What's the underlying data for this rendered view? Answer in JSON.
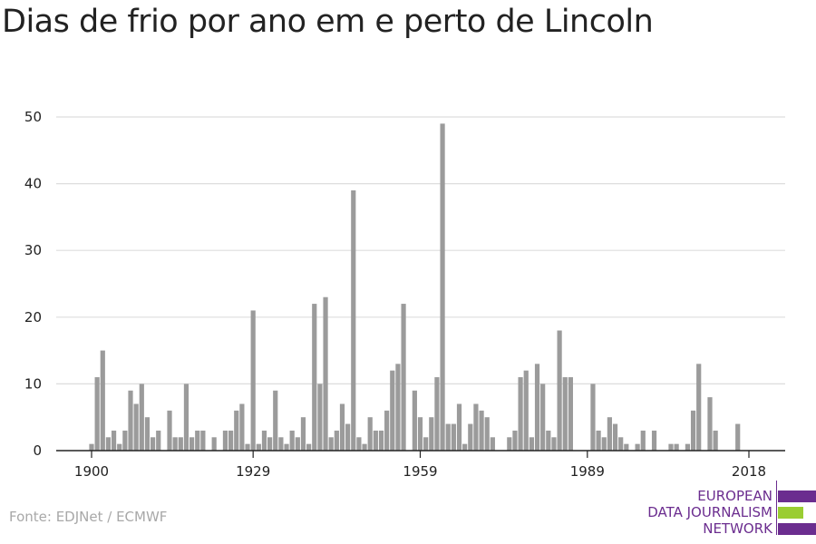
{
  "title": "Dias de frio por ano em e perto de Lincoln",
  "source": "Fonte: EDJNet / ECMWF",
  "logo": {
    "lines": [
      "EUROPEAN",
      "DATA JOURNALISM",
      "NETWORK"
    ],
    "colors": {
      "purple": "#6b2d8f",
      "green": "#9acd32"
    }
  },
  "colors": {
    "bar": "#9b9b9b",
    "grid": "#dddddd",
    "axis": "#222222"
  },
  "chart_data": {
    "type": "bar",
    "title": "Dias de frio por ano em e perto de Lincoln",
    "xlabel": "",
    "ylabel": "",
    "ylim": [
      0,
      50
    ],
    "y_ticks": [
      0,
      10,
      20,
      30,
      40,
      50
    ],
    "x_ticks": [
      1900,
      1929,
      1959,
      1989,
      2018
    ],
    "x_range": [
      1900,
      2018
    ],
    "grid": true,
    "x": [
      1900,
      1901,
      1902,
      1903,
      1904,
      1905,
      1906,
      1907,
      1908,
      1909,
      1910,
      1911,
      1912,
      1913,
      1914,
      1915,
      1916,
      1917,
      1918,
      1919,
      1920,
      1921,
      1922,
      1923,
      1924,
      1925,
      1926,
      1927,
      1928,
      1929,
      1930,
      1931,
      1932,
      1933,
      1934,
      1935,
      1936,
      1937,
      1938,
      1939,
      1940,
      1941,
      1942,
      1943,
      1944,
      1945,
      1946,
      1947,
      1948,
      1949,
      1950,
      1951,
      1952,
      1953,
      1954,
      1955,
      1956,
      1957,
      1958,
      1959,
      1960,
      1961,
      1962,
      1963,
      1964,
      1965,
      1966,
      1967,
      1968,
      1969,
      1970,
      1971,
      1972,
      1973,
      1974,
      1975,
      1976,
      1977,
      1978,
      1979,
      1980,
      1981,
      1982,
      1983,
      1984,
      1985,
      1986,
      1987,
      1988,
      1989,
      1990,
      1991,
      1992,
      1993,
      1994,
      1995,
      1996,
      1997,
      1998,
      1999,
      2000,
      2001,
      2002,
      2003,
      2004,
      2005,
      2006,
      2007,
      2008,
      2009,
      2010,
      2011,
      2012,
      2013,
      2014,
      2015,
      2016,
      2017,
      2018
    ],
    "values": [
      1,
      11,
      15,
      2,
      3,
      1,
      3,
      9,
      7,
      10,
      5,
      2,
      3,
      0,
      6,
      2,
      2,
      10,
      2,
      3,
      3,
      0,
      2,
      0,
      3,
      3,
      6,
      7,
      1,
      21,
      1,
      3,
      2,
      9,
      2,
      1,
      3,
      2,
      5,
      1,
      22,
      10,
      23,
      2,
      3,
      7,
      4,
      39,
      2,
      1,
      5,
      3,
      3,
      6,
      12,
      13,
      22,
      0,
      9,
      5,
      2,
      5,
      11,
      49,
      4,
      4,
      7,
      1,
      4,
      7,
      6,
      5,
      2,
      0,
      0,
      2,
      3,
      11,
      12,
      2,
      13,
      10,
      3,
      2,
      18,
      11,
      11,
      0,
      0,
      0,
      10,
      3,
      2,
      5,
      4,
      2,
      1,
      0,
      1,
      3,
      0,
      3,
      0,
      0,
      1,
      1,
      0,
      1,
      6,
      13,
      0,
      8,
      3,
      0,
      0,
      0,
      4,
      0,
      0
    ]
  }
}
